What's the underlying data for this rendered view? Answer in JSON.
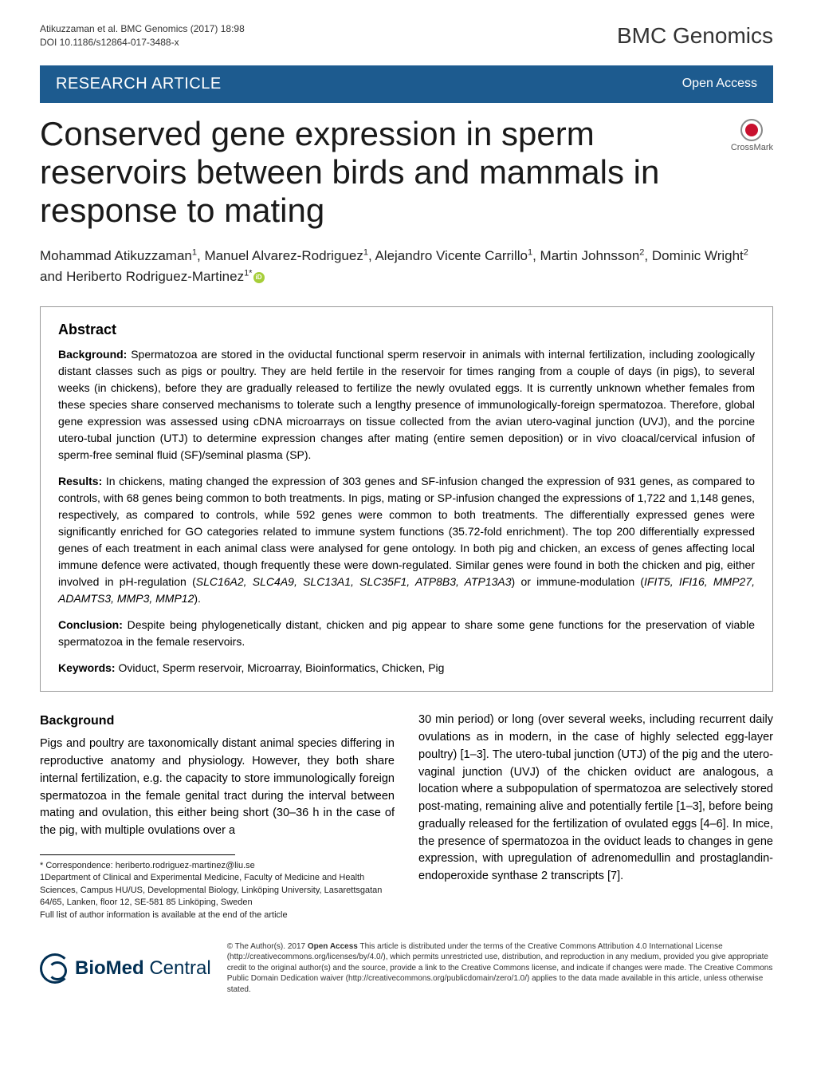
{
  "header": {
    "citation_line1": "Atikuzzaman et al. BMC Genomics  (2017) 18:98",
    "citation_line2": "DOI 10.1186/s12864-017-3488-x",
    "journal": "BMC Genomics"
  },
  "section_bar": {
    "type": "RESEARCH ARTICLE",
    "access": "Open Access"
  },
  "title": "Conserved gene expression in sperm reservoirs between birds and mammals in response to mating",
  "crossmark_label": "CrossMark",
  "authors_html": "Mohammad Atikuzzaman<sup>1</sup>, Manuel Alvarez-Rodriguez<sup>1</sup>, Alejandro Vicente Carrillo<sup>1</sup>, Martin Johnsson<sup>2</sup>, Dominic Wright<sup>2</sup> and Heriberto Rodriguez-Martinez<sup>1*</sup>",
  "abstract": {
    "heading": "Abstract",
    "background_label": "Background:",
    "background": " Spermatozoa are stored in the oviductal functional sperm reservoir in animals with internal fertilization, including zoologically distant classes such as pigs or poultry. They are held fertile in the reservoir for times ranging from a couple of days (in pigs), to several weeks (in chickens), before they are gradually released to fertilize the newly ovulated eggs. It is currently unknown whether females from these species share conserved mechanisms to tolerate such a lengthy presence of immunologically-foreign spermatozoa. Therefore, global gene expression was assessed using cDNA microarrays on tissue collected from the avian utero-vaginal junction (UVJ), and the porcine utero-tubal junction (UTJ) to determine expression changes after mating (entire semen deposition) or in vivo cloacal/cervical infusion of sperm-free seminal fluid (SF)/seminal plasma (SP).",
    "results_label": "Results:",
    "results_1": " In chickens, mating changed the expression of 303 genes and SF-infusion changed the expression of 931 genes, as compared to controls, with 68 genes being common to both treatments. In pigs, mating or SP-infusion changed the expressions of 1,722 and 1,148 genes, respectively, as compared to controls, while 592 genes were common to both treatments. The differentially expressed genes were significantly enriched for GO categories related to immune system functions (35.72-fold enrichment). The top 200 differentially expressed genes of each treatment in each animal class were analysed for gene ontology. In both pig and chicken, an excess of genes affecting local immune defence were activated, though frequently these were down-regulated. Similar genes were found in both the chicken and pig, either involved in pH-regulation (",
    "results_genes1": "SLC16A2, SLC4A9, SLC13A1, SLC35F1, ATP8B3, ATP13A3",
    "results_2": ") or immune-modulation (",
    "results_genes2": "IFIT5, IFI16, MMP27, ADAMTS3, MMP3, MMP12",
    "results_3": ").",
    "conclusion_label": "Conclusion:",
    "conclusion": " Despite being phylogenetically distant, chicken and pig appear to share some gene functions for the preservation of viable spermatozoa in the female reservoirs.",
    "keywords_label": "Keywords:",
    "keywords": " Oviduct, Sperm reservoir, Microarray, Bioinformatics, Chicken, Pig"
  },
  "body": {
    "heading": "Background",
    "left_col": "Pigs and poultry are taxonomically distant animal species differing in reproductive anatomy and physiology. However, they both share internal fertilization, e.g. the capacity to store immunologically foreign spermatozoa in the female genital tract during the interval between mating and ovulation, this either being short (30–36 h in the case of the pig, with multiple ovulations over a",
    "right_col": "30 min period) or long (over several weeks, including recurrent daily ovulations as in modern, in the case of highly selected egg-layer poultry) [1–3]. The utero-tubal junction (UTJ) of the pig and the utero-vaginal junction (UVJ) of the chicken oviduct are analogous, a location where a subpopulation of spermatozoa are selectively stored post-mating, remaining alive and potentially fertile [1–3], before being gradually released for the fertilization of ovulated eggs [4–6]. In mice, the presence of spermatozoa in the oviduct leads to changes in gene expression, with upregulation of adrenomedullin and prostaglandin-endoperoxide synthase 2 transcripts [7]."
  },
  "footnote": {
    "correspondence": "* Correspondence: heriberto.rodriguez-martinez@liu.se",
    "dept": "1Department of Clinical and Experimental Medicine, Faculty of Medicine and Health Sciences, Campus HU/US, Developmental Biology, Linköping University, Lasarettsgatan 64/65, Lanken, floor 12, SE-581 85 Linköping, Sweden",
    "full": "Full list of author information is available at the end of the article"
  },
  "footer": {
    "logo_text1": "BioMed",
    "logo_text2": " Central",
    "license_bold": "Open Access",
    "license_text_1": "© The Author(s). 2017 ",
    "license_text_2": " This article is distributed under the terms of the Creative Commons Attribution 4.0 International License (http://creativecommons.org/licenses/by/4.0/), which permits unrestricted use, distribution, and reproduction in any medium, provided you give appropriate credit to the original author(s) and the source, provide a link to the Creative Commons license, and indicate if changes were made. The Creative Commons Public Domain Dedication waiver (http://creativecommons.org/publicdomain/zero/1.0/) applies to the data made available in this article, unless otherwise stated."
  },
  "colors": {
    "section_bar_bg": "#1d5b8f",
    "crossmark_dot": "#c8102e",
    "orcid_bg": "#a6ce39",
    "bmc_blue": "#012f53"
  }
}
